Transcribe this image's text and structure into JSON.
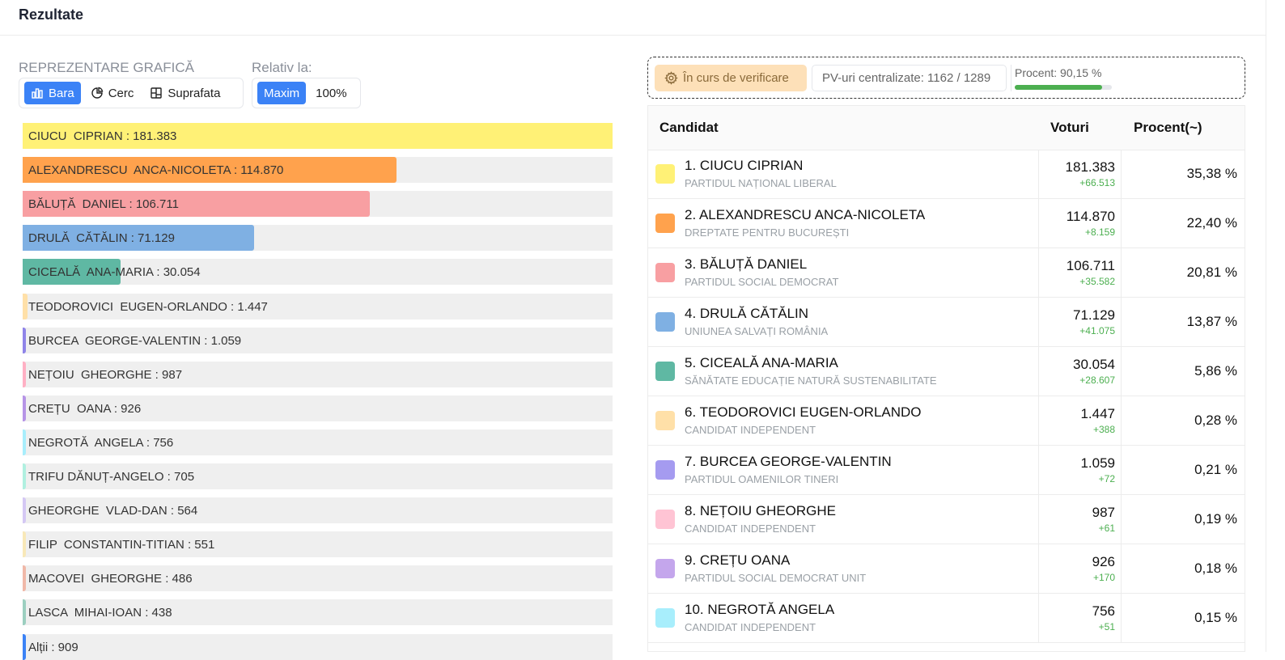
{
  "header": {
    "title": "Rezultate"
  },
  "controls": {
    "representation_label": "REPREZENTARE GRAFICĂ",
    "relative_label": "Relativ la:",
    "chart_types": [
      {
        "label": "Bara",
        "icon": "bar-chart-icon",
        "active": true
      },
      {
        "label": "Cerc",
        "icon": "pie-chart-icon",
        "active": false
      },
      {
        "label": "Suprafata",
        "icon": "treemap-icon",
        "active": false
      }
    ],
    "relative_options": [
      {
        "label": "Maxim",
        "active": true
      },
      {
        "label": "100%",
        "active": false
      }
    ]
  },
  "status": {
    "verification_label": "În curs de verificare",
    "pv_label": "PV-uri centralizate: 1162 / 1289",
    "percent_label": "Procent: 90,15 %",
    "percent_value": 90.15
  },
  "table": {
    "headers": {
      "candidate": "Candidat",
      "votes": "Voturi",
      "percent": "Procent(~)"
    },
    "rows": [
      {
        "name": "1. CIUCU CIPRIAN",
        "party": "PARTIDUL NAȚIONAL LIBERAL",
        "votes": "181.383",
        "delta": "+66.513",
        "percent": "35,38 %",
        "color": "#fff176"
      },
      {
        "name": "2. ALEXANDRESCU ANCA-NICOLETA",
        "party": "DREPTATE PENTRU BUCUREȘTI",
        "votes": "114.870",
        "delta": "+8.159",
        "percent": "22,40 %",
        "color": "#ffa24d"
      },
      {
        "name": "3. BĂLUȚĂ DANIEL",
        "party": "PARTIDUL SOCIAL DEMOCRAT",
        "votes": "106.711",
        "delta": "+35.582",
        "percent": "20,81 %",
        "color": "#f89fa2"
      },
      {
        "name": "4. DRULĂ CĂTĂLIN",
        "party": "UNIUNEA SALVAȚI ROMÂNIA",
        "votes": "71.129",
        "delta": "+41.075",
        "percent": "13,87 %",
        "color": "#7fb0e3"
      },
      {
        "name": "5. CICEALĂ ANA-MARIA",
        "party": "SĂNĂTATE EDUCAȚIE NATURĂ SUSTENABILITATE",
        "votes": "30.054",
        "delta": "+28.607",
        "percent": "5,86 %",
        "color": "#5fb8a3"
      },
      {
        "name": "6. TEODOROVICI EUGEN-ORLANDO",
        "party": "CANDIDAT INDEPENDENT",
        "votes": "1.447",
        "delta": "+388",
        "percent": "0,28 %",
        "color": "#ffe0a8"
      },
      {
        "name": "7. BURCEA GEORGE-VALENTIN",
        "party": "PARTIDUL OAMENILOR TINERI",
        "votes": "1.059",
        "delta": "+72",
        "percent": "0,21 %",
        "color": "#a59bf0"
      },
      {
        "name": "8. NEȚOIU GHEORGHE",
        "party": "CANDIDAT INDEPENDENT",
        "votes": "987",
        "delta": "+61",
        "percent": "0,19 %",
        "color": "#ffc4d4"
      },
      {
        "name": "9. CREȚU OANA",
        "party": "PARTIDUL SOCIAL DEMOCRAT UNIT",
        "votes": "926",
        "delta": "+170",
        "percent": "0,18 %",
        "color": "#c4a6ec"
      },
      {
        "name": "10. NEGROTĂ ANGELA",
        "party": "CANDIDAT INDEPENDENT",
        "votes": "756",
        "delta": "+51",
        "percent": "0,15 %",
        "color": "#a8eefc"
      }
    ]
  },
  "chart_data": {
    "type": "bar",
    "orientation": "horizontal",
    "scale": "relative-to-max",
    "bars": [
      {
        "label": "CIUCU  CIPRIAN : 181.383",
        "value": 181383,
        "color": "#fff176"
      },
      {
        "label": "ALEXANDRESCU  ANCA-NICOLETA : 114.870",
        "value": 114870,
        "color": "#ffa24d"
      },
      {
        "label": "BĂLUȚĂ  DANIEL : 106.711",
        "value": 106711,
        "color": "#f89fa2"
      },
      {
        "label": "DRULĂ  CĂTĂLIN : 71.129",
        "value": 71129,
        "color": "#7fb0e3"
      },
      {
        "label": "CICEALĂ  ANA-MARIA : 30.054",
        "value": 30054,
        "color": "#5fb8a3"
      },
      {
        "label": "TEODOROVICI  EUGEN-ORLANDO : 1.447",
        "value": 1447,
        "color": "#ffe0a8"
      },
      {
        "label": "BURCEA  GEORGE-VALENTIN : 1.059",
        "value": 1059,
        "color": "#8f84e8"
      },
      {
        "label": "NEȚOIU  GHEORGHE : 987",
        "value": 987,
        "color": "#ffb0c4"
      },
      {
        "label": "CREȚU  OANA : 926",
        "value": 926,
        "color": "#b694e6"
      },
      {
        "label": "NEGROTĂ  ANGELA : 756",
        "value": 756,
        "color": "#a8eefc"
      },
      {
        "label": "TRIFU DĂNUȚ-ANGELO : 705",
        "value": 705,
        "color": "#b0f0e0"
      },
      {
        "label": "GHEORGHE  VLAD-DAN : 564",
        "value": 564,
        "color": "#d4c8f4"
      },
      {
        "label": "FILIP  CONSTANTIN-TITIAN : 551",
        "value": 551,
        "color": "#f8e8b8"
      },
      {
        "label": "MACOVEI  GHEORGHE : 486",
        "value": 486,
        "color": "#f0b8a8"
      },
      {
        "label": "LASCA  MIHAI-IOAN : 438",
        "value": 438,
        "color": "#9ccfc0"
      },
      {
        "label": "Alții : 909",
        "value": 909,
        "color": "#3b82f6"
      }
    ]
  }
}
